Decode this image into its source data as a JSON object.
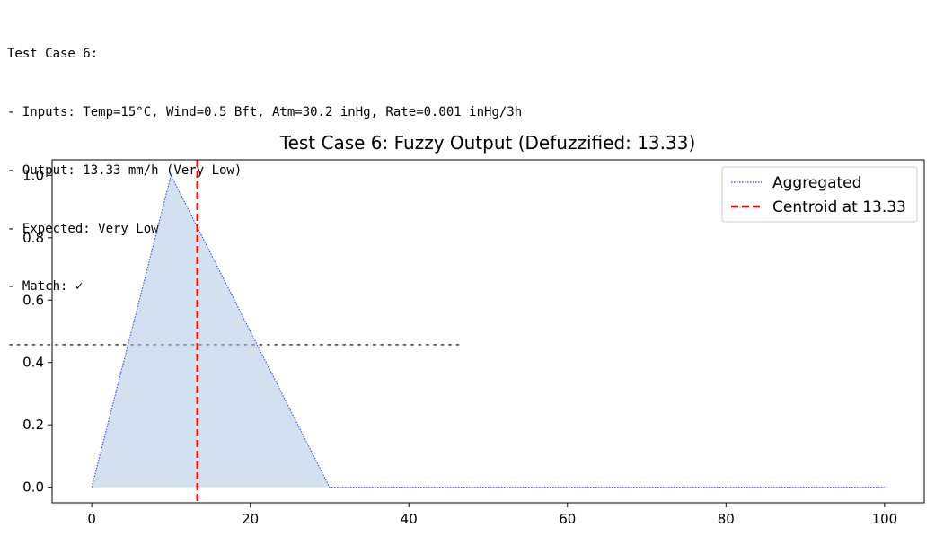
{
  "output": {
    "lines": [
      "Test Case 6:",
      "- Inputs: Temp=15°C, Wind=0.5 Bft, Atm=30.2 inHg, Rate=0.001 inHg/3h",
      "- Output: 13.33 mm/h (Very Low)",
      "- Expected: Very Low",
      "- Match: ✓",
      "------------------------------------------------------------"
    ]
  },
  "chart_data": {
    "type": "area",
    "title": "Test Case 6: Fuzzy Output (Defuzzified: 13.33)",
    "xlabel": "",
    "ylabel": "",
    "xlim": [
      -5,
      105
    ],
    "ylim": [
      -0.05,
      1.05
    ],
    "xticks": [
      0,
      20,
      40,
      60,
      80,
      100
    ],
    "yticks": [
      0.0,
      0.2,
      0.4,
      0.6,
      0.8,
      1.0
    ],
    "grid": false,
    "legend_position": "top-right",
    "series": [
      {
        "name": "Aggregated",
        "style": "dotted",
        "color": "#0000ff",
        "fill_color": "#a6c4e0",
        "x": [
          0,
          10,
          30,
          100
        ],
        "y": [
          0.0,
          1.0,
          0.0,
          0.0
        ]
      }
    ],
    "vlines": [
      {
        "name": "Centroid at 13.33",
        "x": 13.33,
        "color": "#ff0000",
        "style": "dashed"
      }
    ]
  }
}
